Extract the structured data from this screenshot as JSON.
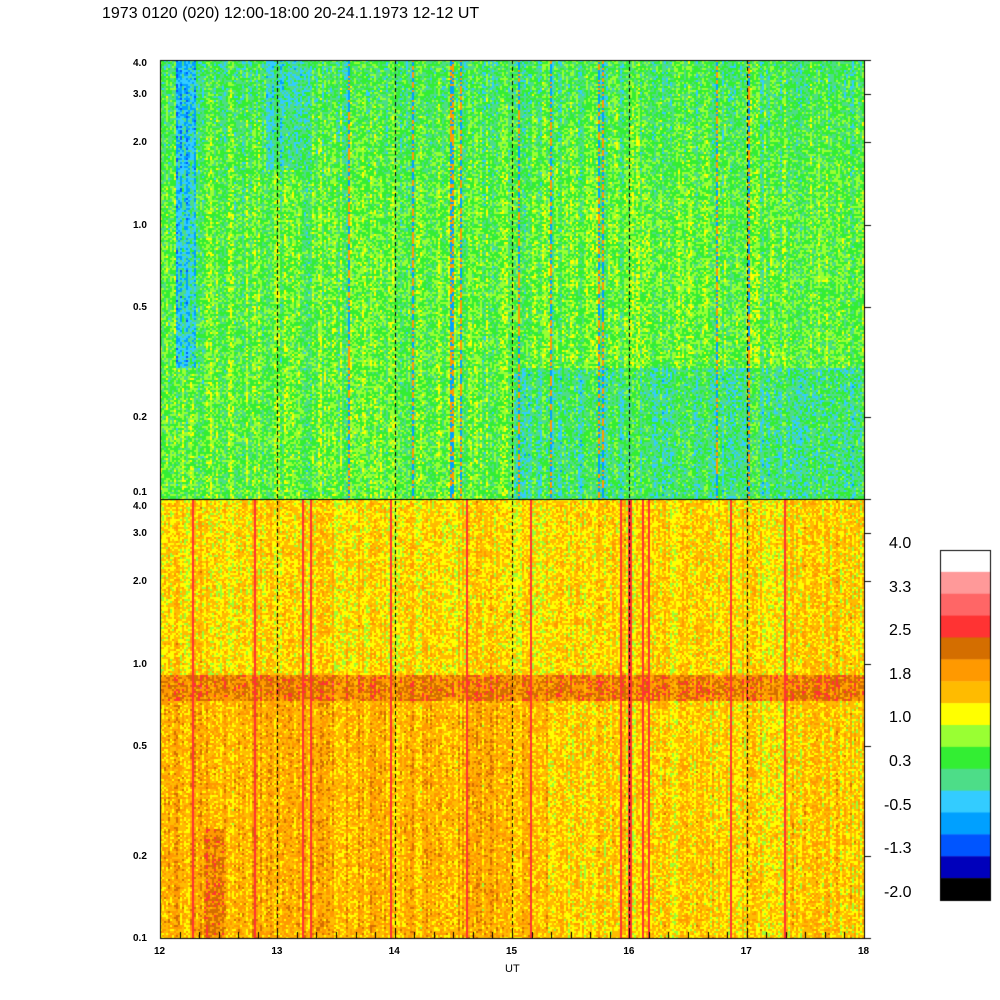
{
  "title": "1973 0120 (020) 12:00-18:00 20-24.1.1973  12-12 UT",
  "chart_data": {
    "type": "heatmap",
    "title": "1973 0120 (020) 12:00-18:00 20-24.1.1973  12-12 UT",
    "xlabel": "UT",
    "ylabel": "",
    "xlim": [
      12,
      18
    ],
    "x_ticks": [
      "12",
      "13",
      "14",
      "15",
      "16",
      "17",
      "18"
    ],
    "yscale": "log",
    "ylim": [
      0.1,
      4.0
    ],
    "y_ticks": [
      "0.1",
      "0.2",
      "0.5",
      "1.0",
      "2.0",
      "3.0",
      "4.0"
    ],
    "y_tick_values": [
      0.1,
      0.2,
      0.5,
      1.0,
      2.0,
      3.0,
      4.0
    ],
    "panels": [
      {
        "name": "upper",
        "dominant_levels": "0.3 to 1.0 (green), -0.5 to -1.3 (blue) at high frequency"
      },
      {
        "name": "lower",
        "dominant_levels": "1.0 to 1.8 (yellow/orange), band ~2.0 near 0.75-0.9"
      }
    ],
    "hour_markers": [
      13,
      14,
      15,
      16,
      17
    ],
    "colorbar": {
      "labels": [
        "4.0",
        "3.3",
        "2.5",
        "1.8",
        "1.0",
        "0.3",
        "-0.5",
        "-1.3",
        "-2.0"
      ],
      "range": [
        -2.0,
        4.0
      ],
      "colors": [
        "#ffffff",
        "#ff9999",
        "#ff6666",
        "#ff3333",
        "#d46e00",
        "#ff9900",
        "#ffbb00",
        "#ffff00",
        "#99ff33",
        "#33ee33",
        "#4ddd88",
        "#33ccff",
        "#00a0ff",
        "#0055ff",
        "#0000bb",
        "#000000"
      ]
    }
  }
}
